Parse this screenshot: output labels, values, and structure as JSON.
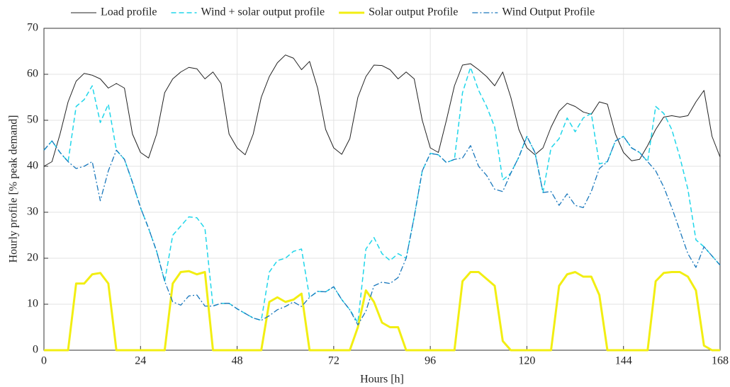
{
  "chart_data": {
    "type": "line",
    "xlabel": "Hours [h]",
    "ylabel": "Hourly profile [% peak demand]",
    "x": [
      0,
      2,
      4,
      6,
      8,
      10,
      12,
      14,
      16,
      18,
      20,
      22,
      24,
      26,
      28,
      30,
      32,
      34,
      36,
      38,
      40,
      42,
      44,
      46,
      48,
      50,
      52,
      54,
      56,
      58,
      60,
      62,
      64,
      66,
      68,
      70,
      72,
      74,
      76,
      78,
      80,
      82,
      84,
      86,
      88,
      90,
      92,
      94,
      96,
      98,
      100,
      102,
      104,
      106,
      108,
      110,
      112,
      114,
      116,
      118,
      120,
      122,
      124,
      126,
      128,
      130,
      132,
      134,
      136,
      138,
      140,
      142,
      144,
      146,
      148,
      150,
      152,
      154,
      156,
      158,
      160,
      162,
      164,
      166,
      168
    ],
    "series": [
      {
        "name": "Load profile",
        "color": "#222222",
        "style": "solid",
        "linewidth": 1,
        "values": [
          40,
          41,
          47,
          54,
          58.5,
          60.2,
          59.8,
          59,
          57,
          58,
          57,
          47,
          43,
          41.8,
          47,
          56,
          59,
          60.5,
          61.5,
          61.2,
          59,
          60.5,
          58,
          47,
          44,
          42.5,
          47,
          55,
          59.5,
          62.5,
          64.2,
          63.5,
          61,
          62.8,
          57,
          48,
          44,
          42.6,
          46,
          55,
          59.5,
          62,
          61.9,
          61,
          59,
          60.5,
          59,
          50,
          44,
          43,
          50,
          57.5,
          62,
          62.3,
          61,
          59.5,
          57.5,
          60.5,
          55,
          48,
          44,
          42.5,
          44,
          48.5,
          52,
          53.7,
          53,
          51.8,
          51.3,
          54,
          53.5,
          47,
          43,
          41.2,
          41.5,
          44.5,
          48,
          50.7,
          51,
          50.7,
          51,
          54,
          56.5,
          46.5,
          42
        ]
      },
      {
        "name": "Wind + solar output profile",
        "color": "#20d6ea",
        "style": "dashed",
        "linewidth": 1.5,
        "values": [
          43.5,
          45.5,
          43,
          41,
          53,
          54.5,
          57.5,
          49.5,
          53.5,
          43.5,
          41.5,
          36.5,
          31,
          26.5,
          21.5,
          15,
          25,
          27,
          29,
          28.8,
          26.5,
          9.6,
          10.2,
          10.2,
          9,
          8,
          7,
          6.5,
          17,
          19.5,
          20,
          21.5,
          22,
          11.5,
          12.8,
          12.7,
          13.8,
          11,
          8.8,
          6,
          22,
          24.5,
          21,
          19.5,
          21,
          20,
          29,
          39,
          42.8,
          42.5,
          40.8,
          41.5,
          56,
          61.5,
          56.5,
          53,
          48.5,
          37,
          38.5,
          42,
          46.5,
          43,
          34.3,
          44,
          46,
          50.5,
          47.5,
          50.5,
          51.5,
          40.5,
          41,
          45.5,
          46.5,
          44,
          43,
          41,
          53,
          51.5,
          48,
          42,
          35,
          24,
          22.5,
          20.5,
          18.5
        ]
      },
      {
        "name": "Solar output Profile",
        "color": "#f2ee12",
        "style": "solid",
        "linewidth": 3,
        "values": [
          0,
          0,
          0,
          0,
          14.5,
          14.5,
          16.5,
          16.8,
          14.5,
          0,
          0,
          0,
          0,
          0,
          0,
          0,
          14.5,
          17,
          17.2,
          16.5,
          17,
          0,
          0,
          0,
          0,
          0,
          0,
          0,
          10.5,
          11.5,
          10.5,
          11,
          12.3,
          0,
          0,
          0,
          0,
          0,
          0,
          5,
          13,
          10.5,
          6,
          5,
          5,
          0,
          0,
          0,
          0,
          0,
          0,
          0,
          15,
          17,
          17,
          15.5,
          14,
          2,
          0,
          0,
          0,
          0,
          0,
          0,
          14,
          16.5,
          17,
          16,
          16,
          12,
          0,
          0,
          0,
          0,
          0,
          0,
          15,
          16.8,
          17,
          17,
          16,
          13,
          1,
          0,
          0
        ]
      },
      {
        "name": "Wind Output Profile",
        "color": "#1a78bc",
        "style": "dashdot",
        "linewidth": 1.3,
        "values": [
          43.5,
          45.5,
          43,
          41,
          39.5,
          40,
          41,
          32.5,
          39,
          43.5,
          41.5,
          36.5,
          31,
          26.5,
          21.5,
          15,
          10.5,
          9.8,
          11.8,
          12,
          9.6,
          9.6,
          10.2,
          10.2,
          9,
          8,
          7,
          6.5,
          7.5,
          8.8,
          9.5,
          10.5,
          9.5,
          11.5,
          12.8,
          12.7,
          13.8,
          11,
          8.8,
          5.5,
          8.5,
          14,
          14.8,
          14.5,
          15.8,
          20,
          29,
          39,
          42.8,
          42.5,
          40.8,
          41.5,
          41.8,
          44.5,
          40,
          38,
          35,
          34.5,
          38.5,
          42,
          46.5,
          43,
          34.3,
          34.5,
          31.5,
          34,
          31.5,
          31,
          34.5,
          39.5,
          41,
          45.5,
          46.5,
          44,
          43,
          41,
          39,
          35.5,
          31,
          26,
          21,
          18,
          22.5,
          20.5,
          18.5
        ]
      }
    ],
    "xlim": [
      0,
      168
    ],
    "xticks": [
      0,
      24,
      48,
      72,
      96,
      120,
      144,
      168
    ],
    "ylim": [
      0,
      70
    ],
    "yticks": [
      0,
      10,
      20,
      30,
      40,
      50,
      60,
      70
    ],
    "grid": true,
    "legend": "top"
  }
}
